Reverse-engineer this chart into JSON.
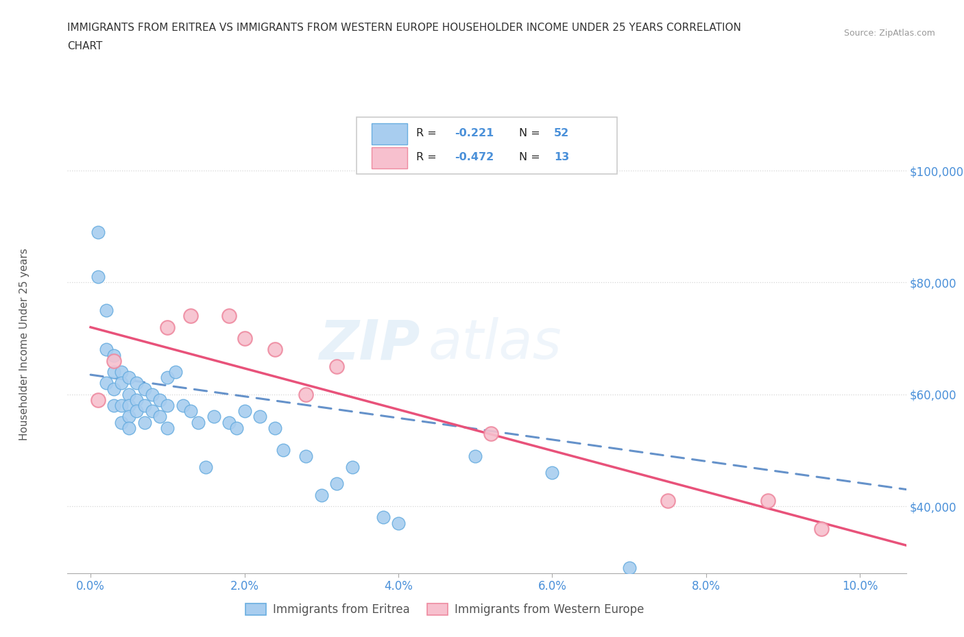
{
  "title_line1": "IMMIGRANTS FROM ERITREA VS IMMIGRANTS FROM WESTERN EUROPE HOUSEHOLDER INCOME UNDER 25 YEARS CORRELATION",
  "title_line2": "CHART",
  "source_text": "Source: ZipAtlas.com",
  "ylabel": "Householder Income Under 25 years",
  "xlabel_ticks": [
    "0.0%",
    "2.0%",
    "4.0%",
    "6.0%",
    "8.0%",
    "10.0%"
  ],
  "xlabel_vals": [
    0.0,
    0.02,
    0.04,
    0.06,
    0.08,
    0.1
  ],
  "ylabel_ticks": [
    "$40,000",
    "$60,000",
    "$80,000",
    "$100,000"
  ],
  "ylabel_vals": [
    40000,
    60000,
    80000,
    100000
  ],
  "xlim": [
    -0.003,
    0.106
  ],
  "ylim": [
    28000,
    110000
  ],
  "watermark_zip": "ZIP",
  "watermark_atlas": "atlas",
  "legend_label1": "Immigrants from Eritrea",
  "legend_label2": "Immigrants from Western Europe",
  "color_eritrea_fill": "#A8CDEF",
  "color_eritrea_edge": "#6AAEE0",
  "color_europe_fill": "#F7C0CE",
  "color_europe_edge": "#EE8AA0",
  "color_line_eritrea": "#4A7FC1",
  "color_line_europe": "#E8527A",
  "color_axis_labels": "#4A90D9",
  "color_grid": "#CCCCCC",
  "eritrea_x": [
    0.001,
    0.001,
    0.002,
    0.002,
    0.002,
    0.003,
    0.003,
    0.003,
    0.003,
    0.004,
    0.004,
    0.004,
    0.004,
    0.005,
    0.005,
    0.005,
    0.005,
    0.005,
    0.006,
    0.006,
    0.006,
    0.007,
    0.007,
    0.007,
    0.008,
    0.008,
    0.009,
    0.009,
    0.01,
    0.01,
    0.011,
    0.012,
    0.013,
    0.014,
    0.015,
    0.016,
    0.018,
    0.019,
    0.02,
    0.022,
    0.024,
    0.025,
    0.028,
    0.03,
    0.032,
    0.034,
    0.038,
    0.04,
    0.05,
    0.06,
    0.07,
    0.01
  ],
  "eritrea_y": [
    89000,
    81000,
    75000,
    68000,
    62000,
    67000,
    64000,
    61000,
    58000,
    64000,
    62000,
    58000,
    55000,
    63000,
    60000,
    58000,
    56000,
    54000,
    62000,
    59000,
    57000,
    61000,
    58000,
    55000,
    60000,
    57000,
    59000,
    56000,
    63000,
    58000,
    64000,
    58000,
    57000,
    55000,
    47000,
    56000,
    55000,
    54000,
    57000,
    56000,
    54000,
    50000,
    49000,
    42000,
    44000,
    47000,
    38000,
    37000,
    49000,
    46000,
    29000,
    54000
  ],
  "europe_x": [
    0.001,
    0.003,
    0.01,
    0.013,
    0.018,
    0.02,
    0.024,
    0.028,
    0.032,
    0.052,
    0.075,
    0.088,
    0.095
  ],
  "europe_y": [
    59000,
    66000,
    72000,
    74000,
    74000,
    70000,
    68000,
    60000,
    65000,
    53000,
    41000,
    41000,
    36000
  ],
  "line_eritrea_x0": 0.0,
  "line_eritrea_x1": 0.106,
  "line_eritrea_y0": 63500,
  "line_eritrea_y1": 43000,
  "line_europe_x0": 0.0,
  "line_europe_x1": 0.106,
  "line_europe_y0": 72000,
  "line_europe_y1": 33000
}
